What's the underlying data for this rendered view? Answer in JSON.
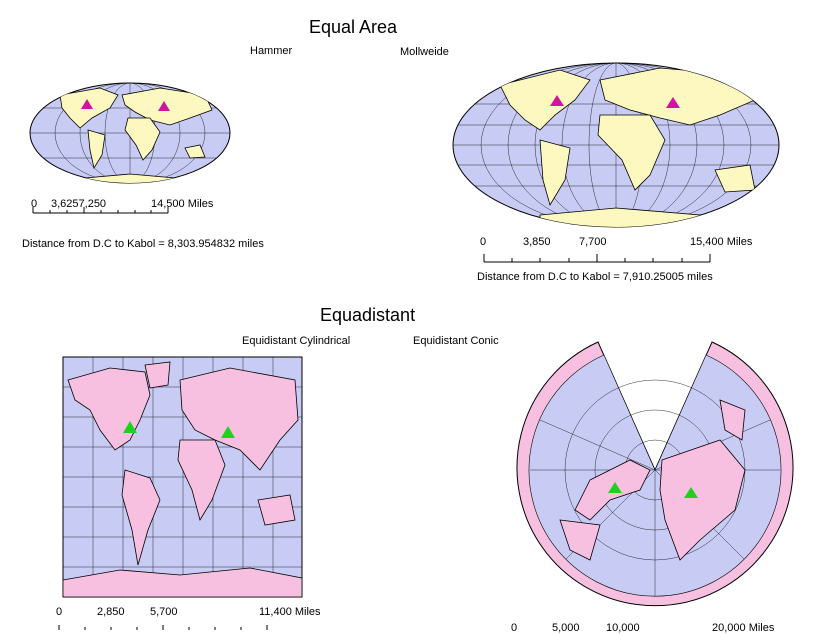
{
  "equal_area": {
    "title": "Equal Area",
    "hammer": {
      "label": "Hammer",
      "scale_ticks": [
        "0",
        "3,6257,250",
        "14,500 Miles"
      ],
      "distance_text": "Distance from D.C to Kabol = 8,303.954832 miles"
    },
    "mollweide": {
      "label": "Mollweide",
      "scale_ticks": [
        "0",
        "3,850",
        "7,700",
        "15,400 Miles"
      ],
      "distance_text": "Distance from D.C to Kabol = 7,910.25005 miles"
    },
    "colors": {
      "ocean": "#c8ccf4",
      "land": "#fcf8c0",
      "marker": "#d0149c"
    }
  },
  "equidistant": {
    "title": "Equadistant",
    "cylindrical": {
      "label": "Equidistant Cylindrical",
      "scale_ticks": [
        "0",
        "2,850",
        "5,700",
        "11,400 Miles"
      ]
    },
    "conic": {
      "label": "Equidistant Conic",
      "scale_ticks": [
        "0",
        "5,000",
        "10,000",
        "20,000 Miles"
      ]
    },
    "colors": {
      "ocean": "#c8ccf4",
      "land": "#f8c0e0",
      "marker": "#20d020"
    }
  },
  "markers": [
    "D.C",
    "Kabol"
  ]
}
